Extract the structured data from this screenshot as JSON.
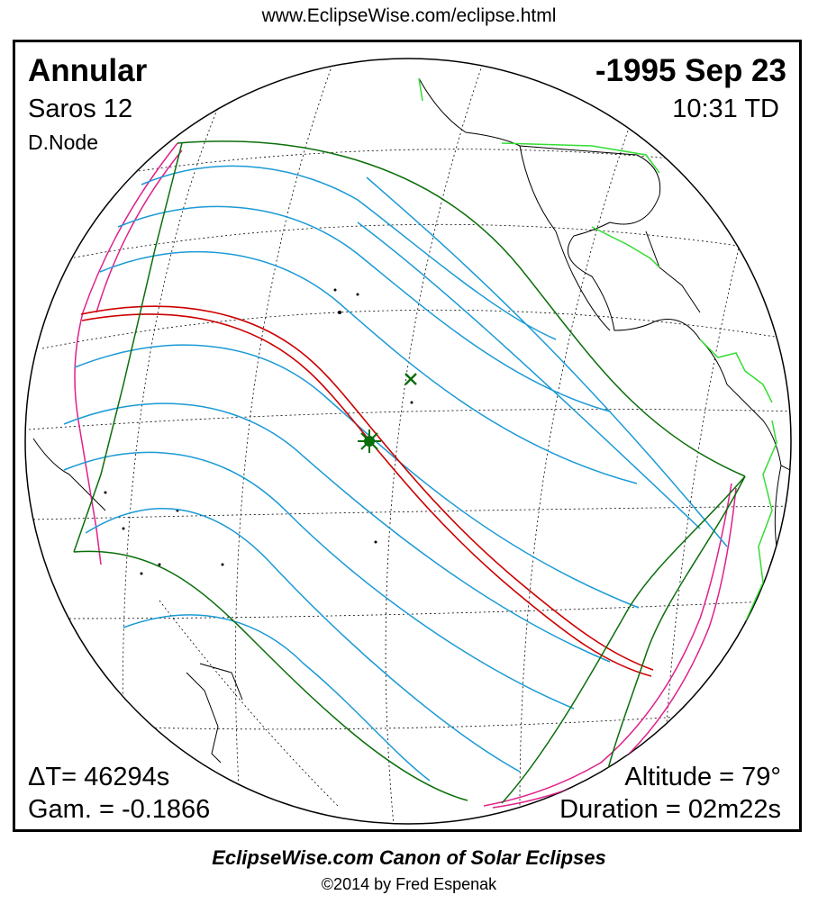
{
  "header": {
    "url": "www.EclipseWise.com/eclipse.html"
  },
  "eclipse": {
    "type": "Annular",
    "date": "-1995 Sep 23",
    "saros": "Saros  12",
    "time": "10:31 TD",
    "node": "D.Node",
    "delta_t": "ΔT=  46294s",
    "altitude": "Altitude = 79°",
    "gamma": "Gam. = -0.1866",
    "duration": "Duration = 02m22s"
  },
  "map": {
    "projection": "orthographic",
    "colors": {
      "central_path": "#cc0000",
      "partial_limits": "#1a9ad6",
      "boundary": "#0a6e0a",
      "rise_set": "#e0208a",
      "borders": "#33dd33",
      "coastlines": "#000000",
      "graticule": "#000000"
    },
    "markers": [
      "greatest-eclipse-star-icon",
      "sub-solar-point-x-icon"
    ]
  },
  "footer": {
    "title": "EclipseWise.com Canon of Solar Eclipses",
    "copyright": "©2014 by Fred Espenak"
  }
}
